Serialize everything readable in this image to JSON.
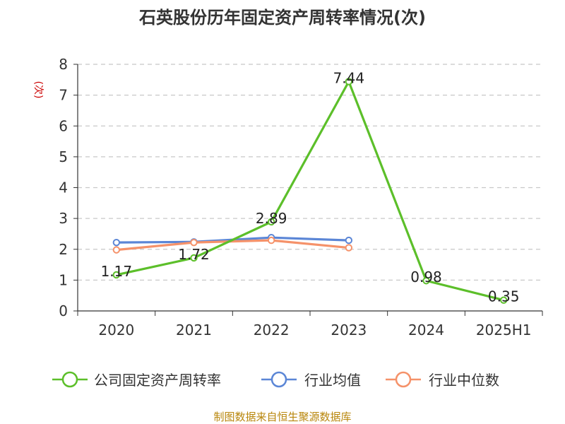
{
  "title": "石英股份历年固定资产周转率情况(次)",
  "source": "制图数据来自恒生聚源数据库",
  "chart_data": {
    "type": "line",
    "title": "石英股份历年固定资产周转率情况(次)",
    "ylabel": "(次)",
    "categories": [
      "2020",
      "2021",
      "2022",
      "2023",
      "2024",
      "2025H1"
    ],
    "ylim": [
      0,
      8
    ],
    "yticks": [
      0,
      1,
      2,
      3,
      4,
      5,
      6,
      7,
      8
    ],
    "grid": true,
    "legend_position": "bottom",
    "series": [
      {
        "name": "公司固定资产周转率",
        "color": "#5cbf2a",
        "values": [
          1.17,
          1.72,
          2.89,
          7.44,
          0.98,
          0.35
        ],
        "labels": true
      },
      {
        "name": "行业均值",
        "color": "#5b86d6",
        "values": [
          2.22,
          2.24,
          2.38,
          2.29,
          null,
          null
        ],
        "labels": false
      },
      {
        "name": "行业中位数",
        "color": "#f5926a",
        "values": [
          1.98,
          2.22,
          2.29,
          2.05,
          null,
          null
        ],
        "labels": false
      }
    ]
  }
}
